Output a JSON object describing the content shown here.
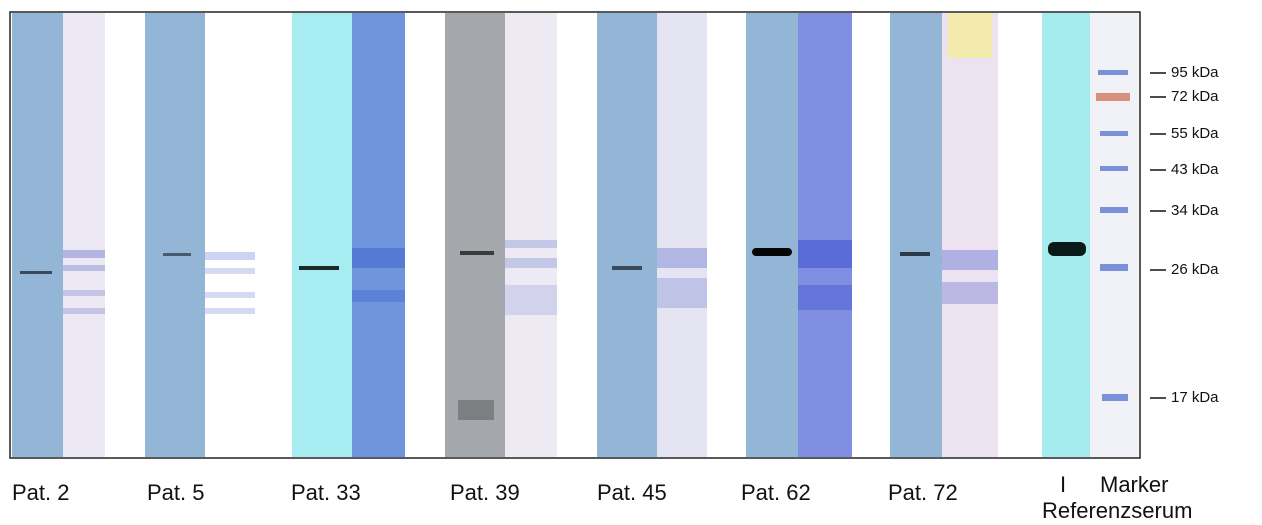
{
  "lanes": [
    {
      "label": "Pat. 2"
    },
    {
      "label": "Pat. 5"
    },
    {
      "label": "Pat. 33"
    },
    {
      "label": "Pat. 39"
    },
    {
      "label": "Pat. 45"
    },
    {
      "label": "Pat. 62"
    },
    {
      "label": "Pat. 72"
    }
  ],
  "reference": {
    "lane_label": "I",
    "marker_label": "Marker",
    "serum_label": "Referenzserum"
  },
  "markers": [
    {
      "label": "95 kDa"
    },
    {
      "label": "72 kDa"
    },
    {
      "label": "55 kDa"
    },
    {
      "label": "43 kDa"
    },
    {
      "label": "34 kDa"
    },
    {
      "label": "26 kDa"
    },
    {
      "label": "17 kDa"
    }
  ]
}
